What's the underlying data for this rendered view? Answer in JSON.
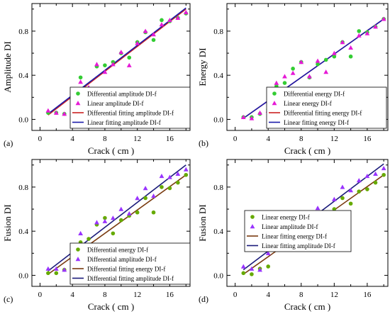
{
  "colors": {
    "differential_marker": "#33cc33",
    "linear_marker": "#e619d6",
    "linear_marker_purple": "#9933ff",
    "differential_marker_olive": "#66aa00",
    "fit_red": "#cc2222",
    "fit_blue": "#1a1aaa",
    "fit_brown": "#7a3b10",
    "fit_navy": "#1a1a7a"
  },
  "chart_data": [
    {
      "type": "scatter",
      "panel_label": "(a)",
      "xlabel": "Crack ( cm )",
      "ylabel": "Amplitude DI",
      "xlim": [
        -1,
        18.5
      ],
      "ylim": [
        -0.1,
        1.05
      ],
      "xticks": [
        "0",
        "4",
        "8",
        "12",
        "16"
      ],
      "yticks": [
        "0.0",
        "0.4",
        "0.8"
      ],
      "legend_position": "bottom-right",
      "series": [
        {
          "name": "Differential  amplitude DI-f",
          "kind": "points",
          "marker": "circle",
          "color": "#33cc33",
          "x": [
            1,
            2,
            3,
            4,
            5,
            6,
            7,
            8,
            9,
            10,
            11,
            12,
            13,
            14,
            15,
            16,
            17,
            18
          ],
          "y": [
            0.06,
            0.06,
            0.05,
            0.2,
            0.38,
            0.27,
            0.48,
            0.49,
            0.52,
            0.6,
            0.56,
            0.7,
            0.79,
            0.72,
            0.9,
            0.89,
            0.92,
            0.96
          ]
        },
        {
          "name": "Linear  amplitude DI-f",
          "kind": "points",
          "marker": "triangle",
          "color": "#e619d6",
          "x": [
            1,
            2,
            3,
            4,
            5,
            6,
            7,
            8,
            9,
            10,
            11,
            12,
            13,
            14,
            15,
            16,
            17,
            18
          ],
          "y": [
            0.08,
            0.06,
            0.05,
            0.2,
            0.34,
            0.29,
            0.5,
            0.43,
            0.5,
            0.61,
            0.49,
            0.69,
            0.8,
            0.77,
            0.86,
            0.9,
            0.92,
            0.97
          ]
        },
        {
          "name": "Differential  fitting amplitude DI-f",
          "kind": "line",
          "color": "#cc2222",
          "x": [
            1,
            18
          ],
          "y": [
            0.04,
            1.0
          ]
        },
        {
          "name": "Linear  fitting amplitude DI-f",
          "kind": "line",
          "color": "#1a1aaa",
          "x": [
            1,
            18
          ],
          "y": [
            0.05,
            1.01
          ]
        }
      ]
    },
    {
      "type": "scatter",
      "panel_label": "(b)",
      "xlabel": "Crack ( cm )",
      "ylabel": "Energy DI",
      "xlim": [
        -1,
        18.5
      ],
      "ylim": [
        -0.1,
        1.05
      ],
      "xticks": [
        "0",
        "4",
        "8",
        "12",
        "16"
      ],
      "yticks": [
        "0.0",
        "0.4",
        "0.8"
      ],
      "legend_position": "bottom-right",
      "series": [
        {
          "name": "Differential  energy DI-f",
          "kind": "points",
          "marker": "circle",
          "color": "#33cc33",
          "x": [
            1,
            2,
            3,
            4,
            5,
            6,
            7,
            8,
            9,
            10,
            11,
            12,
            13,
            14,
            15,
            16,
            17,
            18
          ],
          "y": [
            0.02,
            0.02,
            0.05,
            0.09,
            0.3,
            0.33,
            0.46,
            0.52,
            0.38,
            0.5,
            0.54,
            0.57,
            0.7,
            0.57,
            0.8,
            0.79,
            0.84,
            0.91
          ]
        },
        {
          "name": "Linear  energy DI-f",
          "kind": "points",
          "marker": "triangle",
          "color": "#e619d6",
          "x": [
            1,
            2,
            3,
            4,
            5,
            6,
            7,
            8,
            9,
            10,
            11,
            12,
            13,
            14,
            15,
            16,
            17,
            18
          ],
          "y": [
            0.02,
            0.01,
            0.06,
            0.08,
            0.33,
            0.39,
            0.42,
            0.52,
            0.39,
            0.53,
            0.43,
            0.6,
            0.7,
            0.65,
            0.76,
            0.78,
            0.84,
            0.91
          ]
        },
        {
          "name": "Differential  fitting energy DI-f",
          "kind": "line",
          "color": "#cc2222",
          "x": [
            1,
            18
          ],
          "y": [
            0.01,
            0.91
          ]
        },
        {
          "name": "Linear  fitting energy DI-f",
          "kind": "line",
          "color": "#1a1aaa",
          "x": [
            1,
            18
          ],
          "y": [
            0.01,
            0.91
          ]
        }
      ]
    },
    {
      "type": "scatter",
      "panel_label": "(c)",
      "xlabel": "Crack ( cm )",
      "ylabel": "Fusion DI",
      "xlim": [
        -1,
        18.5
      ],
      "ylim": [
        -0.1,
        1.05
      ],
      "xticks": [
        "0",
        "4",
        "8",
        "12",
        "16"
      ],
      "yticks": [
        "0.0",
        "0.4",
        "0.8"
      ],
      "legend_position": "bottom-right",
      "series": [
        {
          "name": "Differential  energy DI-f",
          "kind": "points",
          "marker": "circle",
          "color": "#66aa00",
          "x": [
            1,
            2,
            3,
            4,
            5,
            6,
            7,
            8,
            9,
            10,
            11,
            12,
            13,
            14,
            15,
            16,
            17,
            18
          ],
          "y": [
            0.02,
            0.02,
            0.05,
            0.09,
            0.3,
            0.33,
            0.46,
            0.52,
            0.38,
            0.5,
            0.54,
            0.57,
            0.7,
            0.57,
            0.8,
            0.79,
            0.84,
            0.91
          ]
        },
        {
          "name": "Differential  amplitude DI-f",
          "kind": "points",
          "marker": "triangle",
          "color": "#9933ff",
          "x": [
            1,
            2,
            3,
            4,
            5,
            6,
            7,
            8,
            9,
            10,
            11,
            12,
            13,
            14,
            15,
            16,
            17,
            18
          ],
          "y": [
            0.06,
            0.06,
            0.05,
            0.2,
            0.38,
            0.27,
            0.48,
            0.49,
            0.52,
            0.6,
            0.56,
            0.7,
            0.79,
            0.72,
            0.9,
            0.89,
            0.92,
            0.96
          ]
        },
        {
          "name": "Differential  fitting energy DI-f",
          "kind": "line",
          "color": "#7a3b10",
          "x": [
            1,
            18
          ],
          "y": [
            0.01,
            0.91
          ]
        },
        {
          "name": "Differential  fitting amplitude DI-f",
          "kind": "line",
          "color": "#1a1a7a",
          "x": [
            1,
            18
          ],
          "y": [
            0.04,
            1.0
          ]
        }
      ]
    },
    {
      "type": "scatter",
      "panel_label": "(d)",
      "xlabel": "Crack ( cm )",
      "ylabel": "Fusion DI",
      "xlim": [
        -1,
        18.5
      ],
      "ylim": [
        -0.1,
        1.05
      ],
      "xticks": [
        "0",
        "4",
        "8",
        "12",
        "16"
      ],
      "yticks": [
        "0.0",
        "0.4",
        "0.8"
      ],
      "legend_position": "top-left",
      "series": [
        {
          "name": "Linear  energy DI-f",
          "kind": "points",
          "marker": "circle",
          "color": "#66aa00",
          "x": [
            1,
            2,
            3,
            4,
            5,
            6,
            7,
            8,
            9,
            10,
            11,
            12,
            13,
            14,
            15,
            16,
            17,
            18
          ],
          "y": [
            0.02,
            0.01,
            0.06,
            0.08,
            0.33,
            0.39,
            0.42,
            0.52,
            0.39,
            0.53,
            0.43,
            0.6,
            0.7,
            0.65,
            0.76,
            0.78,
            0.84,
            0.91
          ]
        },
        {
          "name": "Linear  amplitude DI-f",
          "kind": "points",
          "marker": "triangle",
          "color": "#9933ff",
          "x": [
            1,
            2,
            3,
            4,
            5,
            6,
            7,
            8,
            9,
            10,
            11,
            12,
            13,
            14,
            15,
            16,
            17,
            18
          ],
          "y": [
            0.08,
            0.06,
            0.05,
            0.2,
            0.34,
            0.29,
            0.5,
            0.43,
            0.5,
            0.61,
            0.49,
            0.69,
            0.8,
            0.77,
            0.86,
            0.9,
            0.92,
            0.97
          ]
        },
        {
          "name": "Linear  fitting energy DI-f",
          "kind": "line",
          "color": "#7a3b10",
          "x": [
            1,
            18
          ],
          "y": [
            0.01,
            0.91
          ]
        },
        {
          "name": "Linear fitting amplitude DI-f",
          "kind": "line",
          "color": "#1a1a7a",
          "x": [
            1,
            18
          ],
          "y": [
            0.05,
            1.01
          ]
        }
      ]
    }
  ]
}
